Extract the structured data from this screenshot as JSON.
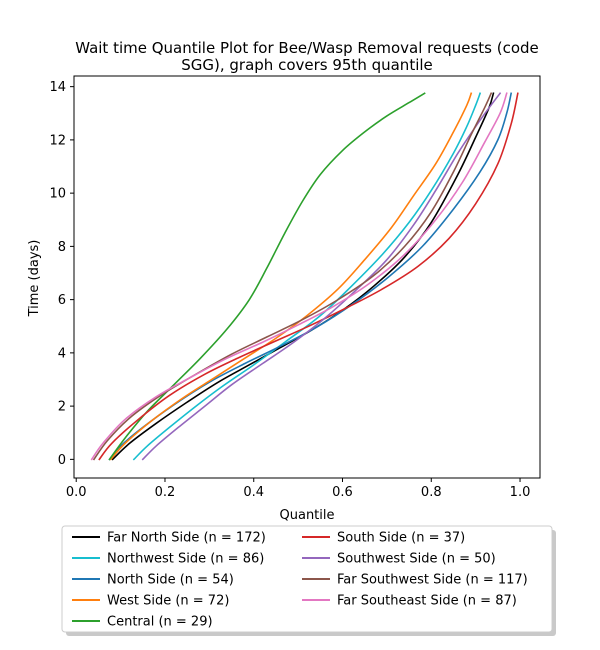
{
  "chart_data": {
    "type": "line",
    "title_lines": [
      "Wait time Quantile Plot for Bee/Wasp Removal  requests (code",
      "SGG), graph covers 95th quantile"
    ],
    "xlabel": "Quantile",
    "ylabel": "Time (days)",
    "xlim": [
      -0.005,
      1.045
    ],
    "ylim": [
      -0.7,
      14.4
    ],
    "xticks": [
      0.0,
      0.2,
      0.4,
      0.6,
      0.8,
      1.0
    ],
    "xtick_labels": [
      "0.0",
      "0.2",
      "0.4",
      "0.6",
      "0.8",
      "1.0"
    ],
    "yticks": [
      0,
      2,
      4,
      6,
      8,
      10,
      12,
      14
    ],
    "ytick_labels": [
      "0",
      "2",
      "4",
      "6",
      "8",
      "10",
      "12",
      "14"
    ],
    "legend_position": "below",
    "series": [
      {
        "name": "Far North Side (n = 172)",
        "color": "#000000",
        "x": [
          0.082,
          0.12,
          0.18,
          0.25,
          0.32,
          0.39,
          0.46,
          0.53,
          0.6,
          0.67,
          0.74,
          0.8,
          0.86,
          0.9,
          0.93,
          0.94
        ],
        "y": [
          0.0,
          0.6,
          1.35,
          2.15,
          2.9,
          3.55,
          4.2,
          4.85,
          5.6,
          6.5,
          7.6,
          8.9,
          10.7,
          12.1,
          13.2,
          13.75
        ]
      },
      {
        "name": "Northwest Side (n = 86)",
        "color": "#17becf",
        "x": [
          0.13,
          0.16,
          0.21,
          0.27,
          0.33,
          0.4,
          0.47,
          0.55,
          0.62,
          0.69,
          0.75,
          0.8,
          0.85,
          0.88,
          0.9,
          0.91
        ],
        "y": [
          0.0,
          0.5,
          1.2,
          2.0,
          2.75,
          3.55,
          4.4,
          5.4,
          6.5,
          7.7,
          8.9,
          10.1,
          11.5,
          12.5,
          13.3,
          13.75
        ]
      },
      {
        "name": "North Side (n = 54)",
        "color": "#1f77b4",
        "x": [
          0.075,
          0.1,
          0.15,
          0.22,
          0.3,
          0.38,
          0.46,
          0.54,
          0.62,
          0.7,
          0.78,
          0.85,
          0.91,
          0.95,
          0.97,
          0.98
        ],
        "y": [
          0.0,
          0.5,
          1.2,
          2.05,
          2.9,
          3.6,
          4.25,
          4.95,
          5.8,
          6.8,
          8.0,
          9.4,
          10.8,
          12.0,
          13.0,
          13.75
        ]
      },
      {
        "name": "West Side (n = 72)",
        "color": "#ff7f0e",
        "x": [
          0.078,
          0.11,
          0.17,
          0.24,
          0.31,
          0.38,
          0.45,
          0.52,
          0.59,
          0.65,
          0.71,
          0.76,
          0.81,
          0.85,
          0.88,
          0.89
        ],
        "y": [
          0.0,
          0.6,
          1.45,
          2.3,
          3.05,
          3.8,
          4.55,
          5.4,
          6.4,
          7.5,
          8.7,
          9.9,
          11.1,
          12.3,
          13.3,
          13.75
        ]
      },
      {
        "name": "Central (n = 29)",
        "color": "#2ca02c",
        "x": [
          0.075,
          0.11,
          0.16,
          0.22,
          0.28,
          0.34,
          0.39,
          0.43,
          0.47,
          0.51,
          0.55,
          0.6,
          0.65,
          0.7,
          0.75,
          0.785
        ],
        "y": [
          0.0,
          0.8,
          1.8,
          2.8,
          3.8,
          4.9,
          6.0,
          7.2,
          8.5,
          9.7,
          10.7,
          11.6,
          12.3,
          12.9,
          13.4,
          13.75
        ]
      },
      {
        "name": "South Side (n = 37)",
        "color": "#d62728",
        "x": [
          0.052,
          0.08,
          0.14,
          0.21,
          0.29,
          0.37,
          0.45,
          0.53,
          0.61,
          0.69,
          0.77,
          0.84,
          0.9,
          0.95,
          0.98,
          0.995
        ],
        "y": [
          0.0,
          0.6,
          1.5,
          2.4,
          3.2,
          3.85,
          4.45,
          5.05,
          5.7,
          6.4,
          7.25,
          8.3,
          9.6,
          11.1,
          12.6,
          13.75
        ]
      },
      {
        "name": "Southwest Side (n = 50)",
        "color": "#9467bd",
        "x": [
          0.15,
          0.18,
          0.23,
          0.29,
          0.35,
          0.42,
          0.49,
          0.56,
          0.63,
          0.7,
          0.76,
          0.81,
          0.86,
          0.9,
          0.93,
          0.955
        ],
        "y": [
          0.0,
          0.5,
          1.2,
          2.0,
          2.8,
          3.6,
          4.4,
          5.3,
          6.35,
          7.5,
          8.8,
          10.1,
          11.5,
          12.5,
          13.2,
          13.75
        ]
      },
      {
        "name": "Far Southwest Side (n = 117)",
        "color": "#8c564b",
        "x": [
          0.04,
          0.07,
          0.12,
          0.19,
          0.27,
          0.35,
          0.43,
          0.51,
          0.59,
          0.67,
          0.74,
          0.8,
          0.85,
          0.89,
          0.92,
          0.935
        ],
        "y": [
          0.0,
          0.7,
          1.55,
          2.4,
          3.2,
          3.95,
          4.6,
          5.25,
          6.0,
          6.9,
          8.0,
          9.3,
          10.8,
          12.2,
          13.2,
          13.75
        ]
      },
      {
        "name": "Far Southeast Side (n = 87)",
        "color": "#e377c2",
        "x": [
          0.035,
          0.06,
          0.11,
          0.18,
          0.26,
          0.34,
          0.42,
          0.5,
          0.58,
          0.66,
          0.74,
          0.81,
          0.87,
          0.92,
          0.955,
          0.97
        ],
        "y": [
          0.0,
          0.6,
          1.5,
          2.35,
          3.1,
          3.8,
          4.4,
          5.05,
          5.75,
          6.6,
          7.7,
          9.0,
          10.4,
          11.9,
          13.0,
          13.75
        ]
      }
    ],
    "legend_columns": [
      [
        "Far North Side (n = 172)",
        "Northwest Side (n = 86)",
        "North Side (n = 54)",
        "West Side (n = 72)",
        "Central (n = 29)"
      ],
      [
        "South Side (n = 37)",
        "Southwest Side (n = 50)",
        "Far Southwest Side (n = 117)",
        "Far Southeast Side (n = 87)"
      ]
    ]
  }
}
